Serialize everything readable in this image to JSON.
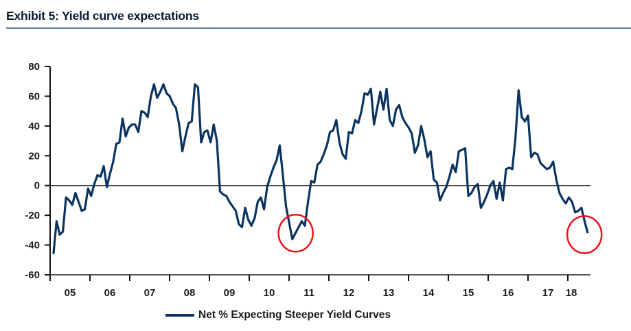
{
  "title": "Exhibit 5: Yield curve expectations",
  "colors": {
    "line": "#0b3360",
    "rule": "#5b7bab",
    "circle": "#e8141c",
    "zero_line": "#555555"
  },
  "chart_data": {
    "type": "line",
    "title": "Exhibit 5: Yield curve expectations",
    "xlabel": "",
    "ylabel": "",
    "ylim": [
      -60,
      80
    ],
    "yticks": [
      80,
      60,
      40,
      20,
      0,
      -20,
      -40,
      -60
    ],
    "xlim": [
      "2005-01",
      "2018-08"
    ],
    "xtick_labels": [
      "05",
      "06",
      "07",
      "08",
      "09",
      "10",
      "11",
      "12",
      "13",
      "14",
      "15",
      "16",
      "17",
      "18"
    ],
    "grid": false,
    "zero_line": true,
    "legend": {
      "placement": "bottom",
      "entries": [
        "Net % Expecting Steeper Yield Curves"
      ]
    },
    "series": [
      {
        "name": "Net % Expecting Steeper Yield Curves",
        "frequency": "monthly",
        "start": "2005-02",
        "end": "2018-07",
        "values": [
          -46,
          -24,
          -33,
          -31,
          -8,
          -10,
          -13,
          -5,
          -11,
          -17,
          -16,
          -2,
          -7,
          1,
          7,
          6,
          13,
          -1,
          8,
          16,
          28,
          29,
          45,
          33,
          39,
          41,
          41,
          36,
          50,
          49,
          46,
          60,
          68,
          59,
          63,
          68,
          62,
          60,
          55,
          52,
          41,
          23,
          33,
          42,
          43,
          68,
          66,
          29,
          36,
          37,
          29,
          41,
          30,
          -4,
          -6,
          -7,
          -11,
          -14,
          -17,
          -26,
          -28,
          -15,
          -23,
          -27,
          -22,
          -11,
          -8,
          -16,
          -1,
          6,
          12,
          17,
          27,
          7,
          -14,
          -25,
          -36,
          -32,
          -28,
          -24,
          -27,
          -11,
          3,
          2,
          14,
          16,
          21,
          27,
          36,
          37,
          44,
          29,
          21,
          18,
          36,
          35,
          44,
          42,
          50,
          62,
          61,
          65,
          41,
          52,
          63,
          51,
          65,
          44,
          40,
          51,
          54,
          46,
          42,
          39,
          35,
          22,
          27,
          40,
          31,
          19,
          23,
          4,
          2,
          -10,
          -5,
          -1,
          6,
          14,
          9,
          23,
          24,
          25,
          -7,
          -5,
          -1,
          1,
          -15,
          -11,
          -6,
          0,
          3,
          -9,
          2,
          -10,
          11,
          12,
          11,
          32,
          64,
          46,
          43,
          47,
          19,
          22,
          21,
          15,
          13,
          11,
          12,
          16,
          4,
          -5,
          -9,
          -12,
          -8,
          -11,
          -18,
          -17,
          -15,
          -24,
          -32
        ]
      }
    ],
    "annotations": [
      {
        "type": "circle",
        "x": "2011-03",
        "y": -32
      },
      {
        "type": "circle",
        "x": "2018-06",
        "y": -33
      }
    ]
  }
}
